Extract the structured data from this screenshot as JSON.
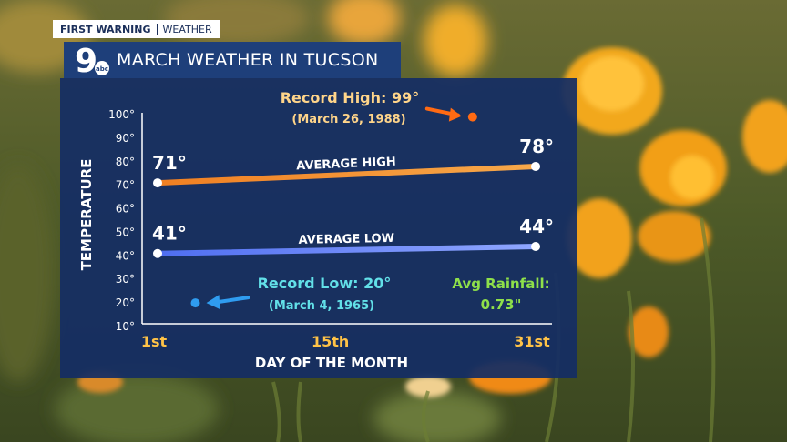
{
  "brand": {
    "line1": "FIRST WARNING",
    "line2": "WEATHER"
  },
  "logo": {
    "numeral": "9",
    "network": "abc"
  },
  "header": {
    "title": "MARCH WEATHER IN TUCSON"
  },
  "colors": {
    "high": "#f08a24",
    "low": "#4f7df0",
    "record_high": "#ff6a13",
    "record_low": "#2f9cf0",
    "record_high_text": "#ffd58a",
    "record_low_text": "#62e0e8",
    "rain_text": "#8ee04a"
  },
  "chart_data": {
    "type": "line",
    "xlabel": "DAY OF THE MONTH",
    "ylabel": "TEMPERATURE",
    "xlim": [
      1,
      31
    ],
    "ylim": [
      10,
      100
    ],
    "yticks": [
      "100°",
      "90°",
      "80°",
      "70°",
      "60°",
      "50°",
      "40°",
      "30°",
      "20°",
      "10°"
    ],
    "xticks": [
      {
        "value": 1,
        "label": "1st"
      },
      {
        "value": 15,
        "label": "15th"
      },
      {
        "value": 31,
        "label": "31st"
      }
    ],
    "series": [
      {
        "name": "AVERAGE HIGH",
        "x": [
          1,
          31
        ],
        "y": [
          71,
          78
        ],
        "labels": [
          "71°",
          "78°"
        ]
      },
      {
        "name": "AVERAGE LOW",
        "x": [
          1,
          31
        ],
        "y": [
          41,
          44
        ],
        "labels": [
          "41°",
          "44°"
        ]
      }
    ],
    "annotations": {
      "record_high": {
        "x": 26,
        "y": 99,
        "text": "Record High: 99°",
        "date": "(March 26, 1988)"
      },
      "record_low": {
        "x": 4,
        "y": 20,
        "text": "Record Low: 20°",
        "date": "(March 4, 1965)"
      },
      "rainfall": {
        "label": "Avg Rainfall:",
        "value": "0.73\""
      }
    }
  }
}
